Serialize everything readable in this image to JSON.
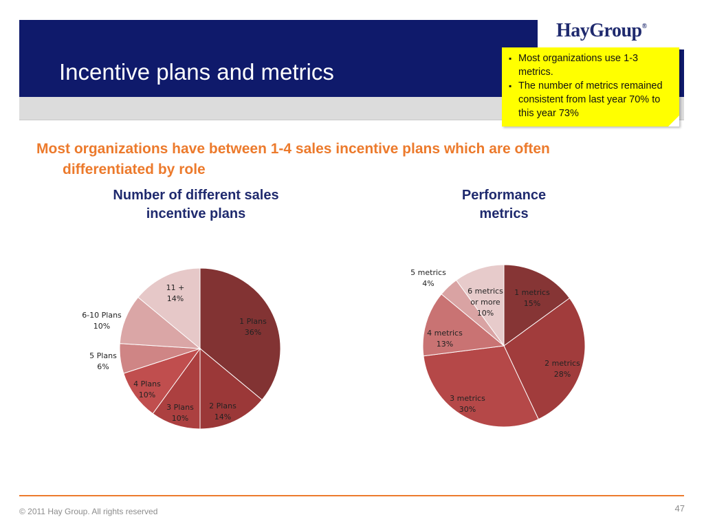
{
  "header": {
    "title": "Incentive plans and metrics",
    "logo_text": "HayGroup",
    "logo_mark": "®"
  },
  "note": {
    "bullets": [
      "Most organizations use 1-3 metrics.",
      "The number of metrics remained consistent from last year 70% to this year 73%"
    ]
  },
  "headline": {
    "line1": "Most organizations have between 1-4 sales incentive plans which are often",
    "line2": "differentiated by role"
  },
  "colors": {
    "header_band": "#0f1a6b",
    "accent": "#ec7a2c",
    "title_text": "#1f2a6e",
    "note_bg": "#ffff00"
  },
  "chart_data": [
    {
      "type": "pie",
      "title": "Number of different sales\nincentive plans",
      "slices": [
        {
          "label": "1 Plans",
          "value": 36,
          "display": "36%",
          "color": "#823333"
        },
        {
          "label": "2 Plans",
          "value": 14,
          "display": "14%",
          "color": "#9b3838"
        },
        {
          "label": "3 Plans",
          "value": 10,
          "display": "10%",
          "color": "#ac4040"
        },
        {
          "label": "4 Plans",
          "value": 10,
          "display": "10%",
          "color": "#c04e4e"
        },
        {
          "label": "5 Plans",
          "value": 6,
          "display": "6%",
          "color": "#cf8585"
        },
        {
          "label": "6-10 Plans",
          "value": 10,
          "display": "10%",
          "color": "#daa6a6"
        },
        {
          "label": "11 +",
          "value": 14,
          "display": "14%",
          "color": "#e6c8c8"
        }
      ]
    },
    {
      "type": "pie",
      "title": "Performance\nmetrics",
      "slices": [
        {
          "label": "1 metrics",
          "value": 15,
          "display": "15%",
          "color": "#863535"
        },
        {
          "label": "2 metrics",
          "value": 28,
          "display": "28%",
          "color": "#a13c3c"
        },
        {
          "label": "3 metrics",
          "value": 30,
          "display": "30%",
          "color": "#b54848"
        },
        {
          "label": "4 metrics",
          "value": 13,
          "display": "13%",
          "color": "#c97373"
        },
        {
          "label": "5 metrics",
          "value": 4,
          "display": "4%",
          "color": "#d9a3a3"
        },
        {
          "label": "6 metrics or more",
          "value": 10,
          "display": "10%",
          "color": "#e7cbcb"
        }
      ]
    }
  ],
  "footer": {
    "copyright": "© 2011 Hay Group. All rights reserved",
    "page_number": "47"
  }
}
